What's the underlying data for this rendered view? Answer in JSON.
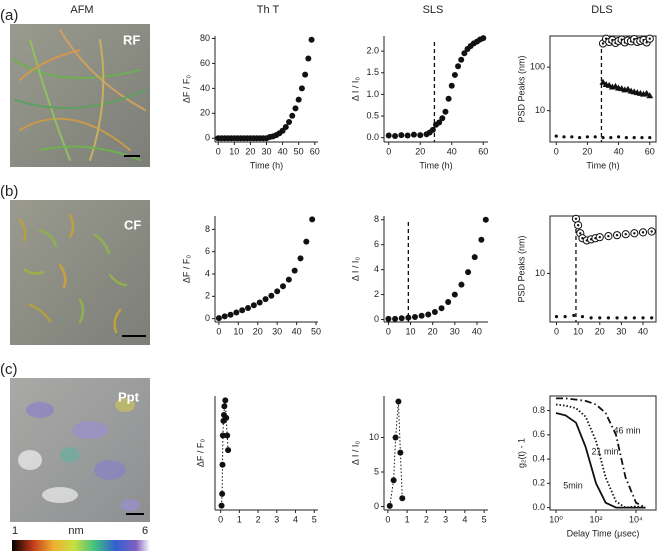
{
  "figure": {
    "columns": [
      "AFM",
      "Th T",
      "SLS",
      "DLS"
    ],
    "rows": [
      "(a)",
      "(b)",
      "(c)"
    ],
    "image_labels": [
      "RF",
      "CF",
      "Ppt"
    ],
    "colorbar": {
      "ticks": [
        1,
        6
      ],
      "label": "nm"
    }
  },
  "chart_data": [
    {
      "type": "scatter",
      "xlabel": "Time (h)",
      "ylabel": "ΔF / F₀",
      "xlim": [
        -2,
        62
      ],
      "xticks": [
        0,
        10,
        20,
        30,
        40,
        50,
        60
      ],
      "ylim": [
        -3,
        82
      ],
      "yticks": [
        0,
        20,
        40,
        60,
        80
      ],
      "series": [
        {
          "color": "#111111",
          "marker": "circle",
          "line": "none",
          "x": [
            0,
            2,
            4,
            6,
            8,
            10,
            12,
            14,
            16,
            18,
            20,
            22,
            24,
            26,
            28,
            30,
            32,
            34,
            36,
            38,
            40,
            42,
            44,
            46,
            48,
            50,
            52,
            54,
            56,
            58
          ],
          "values": [
            0,
            0,
            0,
            0,
            0,
            0,
            0,
            0,
            0,
            0,
            0,
            0,
            0,
            0,
            0,
            0,
            1,
            1.5,
            2.5,
            4,
            6,
            9,
            13,
            18,
            24,
            31,
            40,
            51,
            64,
            79
          ]
        }
      ]
    },
    {
      "type": "scatter",
      "xlabel": "Time (h)",
      "ylabel": "Δ I / I₀",
      "xlim": [
        -3,
        63
      ],
      "xticks": [
        0,
        20,
        40,
        60
      ],
      "ylim": [
        -0.1,
        2.35
      ],
      "yticks": [
        {
          "value": 0,
          "label": "0.0"
        },
        0.5,
        {
          "value": 1,
          "label": "1.0"
        },
        1.5,
        {
          "value": 2,
          "label": "2.0"
        }
      ],
      "vline": 29,
      "series": [
        {
          "color": "#111111",
          "marker": "circle",
          "line": "none",
          "x": [
            0,
            4,
            8,
            12,
            16,
            20,
            24,
            26,
            28,
            30,
            32,
            34,
            36,
            38,
            40,
            42,
            44,
            46,
            48,
            50,
            52,
            54,
            56,
            58,
            60
          ],
          "values": [
            0.05,
            0.04,
            0.06,
            0.05,
            0.07,
            0.06,
            0.08,
            0.12,
            0.18,
            0.3,
            0.35,
            0.45,
            0.6,
            0.9,
            1.2,
            1.45,
            1.65,
            1.8,
            1.95,
            2.05,
            2.12,
            2.18,
            2.22,
            2.27,
            2.3
          ]
        }
      ]
    },
    {
      "type": "scatter",
      "frame": true,
      "ylog": true,
      "xlabel": "Time (h)",
      "ylabel": "PSD Peaks (nm)",
      "xlim": [
        -4,
        64
      ],
      "xticks": [
        0,
        20,
        40,
        60
      ],
      "ylim": [
        1.9,
        520
      ],
      "yticks": [
        10,
        100
      ],
      "vline": 29,
      "series": [
        {
          "color": "#111111",
          "marker": "open-circle",
          "line": "none",
          "x": [
            30,
            32,
            34,
            36,
            38,
            40,
            42,
            44,
            46,
            48,
            50,
            52,
            54,
            56,
            58,
            60
          ],
          "values": [
            350,
            450,
            380,
            420,
            360,
            400,
            430,
            370,
            410,
            390,
            440,
            380,
            400,
            420,
            370,
            450
          ]
        },
        {
          "color": "#111111",
          "marker": "triangle",
          "line": "none",
          "x": [
            30,
            32,
            34,
            36,
            38,
            40,
            42,
            44,
            46,
            48,
            50,
            52,
            54,
            56,
            58,
            60
          ],
          "values": [
            45,
            40,
            38,
            35,
            36,
            33,
            32,
            30,
            31,
            28,
            27,
            26,
            25,
            24,
            25,
            22
          ]
        },
        {
          "color": "#111111",
          "marker": "small",
          "line": "none",
          "x": [
            0,
            5,
            10,
            15,
            20,
            25,
            30,
            35,
            40,
            45,
            50,
            55,
            60
          ],
          "values": [
            2.6,
            2.5,
            2.5,
            2.4,
            2.5,
            2.5,
            2.4,
            2.4,
            2.5,
            2.4,
            2.4,
            2.4,
            2.4
          ]
        }
      ]
    },
    {
      "type": "scatter",
      "ylabel": "ΔF / F₀",
      "xlim": [
        -2,
        51
      ],
      "xticks": [
        0,
        10,
        20,
        30,
        40,
        50
      ],
      "ylim": [
        -0.3,
        9.2
      ],
      "yticks": [
        0,
        2,
        4,
        6,
        8
      ],
      "series": [
        {
          "color": "#111111",
          "marker": "circle",
          "line": "none",
          "x": [
            0,
            3,
            6,
            9,
            12,
            15,
            18,
            21,
            24,
            27,
            30,
            33,
            36,
            39,
            42,
            45,
            48
          ],
          "values": [
            0.05,
            0.2,
            0.35,
            0.55,
            0.75,
            0.95,
            1.2,
            1.45,
            1.75,
            2.05,
            2.45,
            2.9,
            3.5,
            4.3,
            5.4,
            6.9,
            8.9
          ]
        }
      ]
    },
    {
      "type": "scatter",
      "ylabel": "Δ I / I₀",
      "xlim": [
        -2,
        45
      ],
      "xticks": [
        0,
        10,
        20,
        30,
        40
      ],
      "ylim": [
        -0.2,
        8.3
      ],
      "yticks": [
        0,
        2,
        4,
        6,
        8
      ],
      "vline": 9,
      "series": [
        {
          "color": "#111111",
          "marker": "circle",
          "line": "none",
          "x": [
            0,
            3,
            6,
            9,
            12,
            15,
            18,
            21,
            24,
            27,
            30,
            33,
            36,
            39,
            42,
            44
          ],
          "values": [
            0.05,
            0.05,
            0.1,
            0.15,
            0.2,
            0.3,
            0.4,
            0.6,
            0.9,
            1.4,
            2,
            2.8,
            3.8,
            5,
            6.4,
            8
          ]
        }
      ]
    },
    {
      "type": "scatter",
      "frame": true,
      "ylog": true,
      "ylabel": "PSD Peaks (nm)",
      "xlim": [
        -3,
        46
      ],
      "xticks": [
        0,
        10,
        20,
        30,
        40
      ],
      "ylim": [
        2.2,
        60
      ],
      "yticks": [
        10
      ],
      "vline": 9,
      "series": [
        {
          "color": "#111111",
          "marker": "open-circle",
          "line": "none",
          "x": [
            9,
            10,
            11,
            12,
            14,
            16,
            18,
            20,
            24,
            28,
            32,
            36,
            40,
            44
          ],
          "values": [
            55,
            45,
            35,
            30,
            28,
            29,
            30,
            31,
            32,
            33,
            34,
            35,
            36,
            37
          ]
        },
        {
          "color": "#111111",
          "marker": "small",
          "line": "none",
          "x": [
            0,
            4,
            8,
            12,
            16,
            20,
            24,
            28,
            32,
            36,
            40,
            44
          ],
          "values": [
            2.6,
            2.6,
            2.7,
            2.6,
            2.5,
            2.5,
            2.5,
            2.5,
            2.5,
            2.5,
            2.5,
            2.5
          ]
        }
      ]
    },
    {
      "type": "scatter",
      "ylabel": "ΔF / F₀",
      "xlim": [
        -0.3,
        5.2
      ],
      "xticks": [
        0,
        1,
        2,
        3,
        4,
        5
      ],
      "ylim": [
        -3,
        75
      ],
      "yticks": [],
      "series": [
        {
          "color": "#111111",
          "marker": "circle",
          "line": "dotted",
          "x": [
            0.05,
            0.08,
            0.1,
            0.12,
            0.15,
            0.18,
            0.2,
            0.25,
            0.3,
            0.35,
            0.4
          ],
          "values": [
            0,
            8,
            28,
            48,
            58,
            62,
            68,
            72,
            60,
            48,
            38
          ]
        }
      ]
    },
    {
      "type": "scatter",
      "ylabel": "Δ I / I₀",
      "xlim": [
        -0.2,
        5.2
      ],
      "xticks": [
        0,
        1,
        2,
        3,
        4,
        5
      ],
      "ylim": [
        -0.5,
        16
      ],
      "yticks": [
        0,
        5,
        10
      ],
      "series": [
        {
          "color": "#111111",
          "marker": "circle",
          "line": "dotted",
          "x": [
            0.1,
            0.3,
            0.4,
            0.55,
            0.65,
            0.75
          ],
          "values": [
            0.1,
            3.8,
            10,
            15.2,
            7.8,
            1.2
          ]
        }
      ]
    },
    {
      "type": "line",
      "frame": true,
      "xlog": true,
      "xlabel": "Delay Time (μsec)",
      "ylabel": "g₂(t) - 1",
      "xlim": [
        0.5,
        100000
      ],
      "xticks": [
        {
          "value": 1,
          "label": "10⁰"
        },
        {
          "value": 100,
          "label": "10²"
        },
        {
          "value": 10000,
          "label": "10⁴"
        }
      ],
      "ylim": [
        -0.02,
        0.92
      ],
      "yticks": [
        {
          "value": 0,
          "label": "0.0"
        },
        0.2,
        0.4,
        0.6,
        0.8
      ],
      "series": [
        {
          "color": "#111111",
          "line": "solid",
          "annotation": "5min",
          "x": [
            1,
            3,
            10,
            30,
            100,
            300,
            1000,
            3000,
            10000,
            30000
          ],
          "values": [
            0.78,
            0.76,
            0.7,
            0.5,
            0.2,
            0.04,
            0,
            0,
            0,
            0
          ]
        },
        {
          "color": "#111111",
          "line": "dotted",
          "annotation": "21 min",
          "x": [
            1,
            3,
            10,
            30,
            100,
            300,
            1000,
            3000,
            10000,
            30000
          ],
          "values": [
            0.85,
            0.84,
            0.82,
            0.75,
            0.55,
            0.25,
            0.05,
            0,
            0.01,
            0
          ]
        },
        {
          "color": "#111111",
          "line": "dash-dot",
          "annotation": "46 min",
          "x": [
            1,
            3,
            10,
            30,
            100,
            300,
            1000,
            3000,
            10000,
            30000
          ],
          "values": [
            0.9,
            0.9,
            0.89,
            0.88,
            0.85,
            0.78,
            0.6,
            0.25,
            0.04,
            0
          ]
        }
      ]
    }
  ]
}
